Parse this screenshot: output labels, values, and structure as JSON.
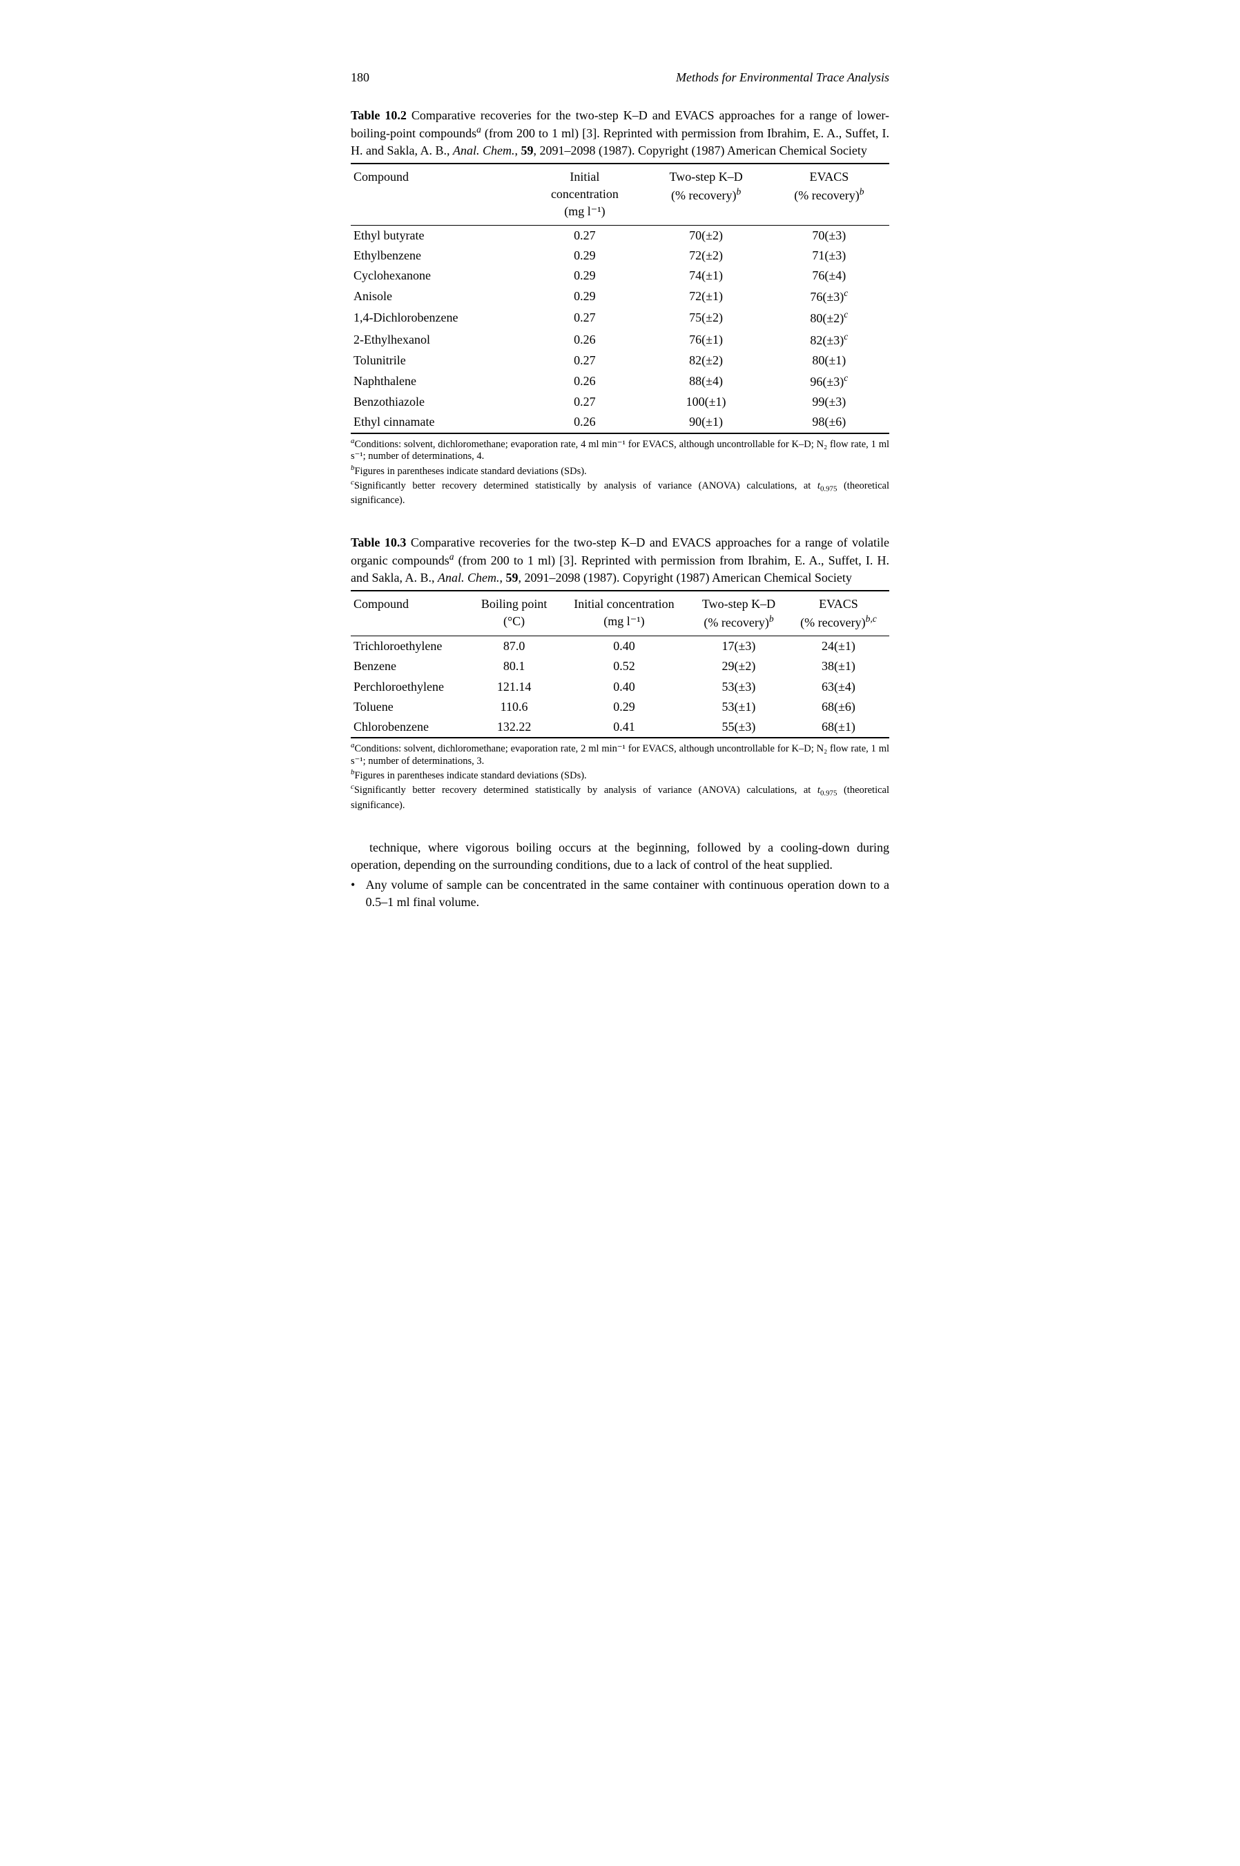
{
  "page_number": "180",
  "running_head": "Methods for Environmental Trace Analysis",
  "table_10_2": {
    "label": "Table 10.2",
    "caption_parts": {
      "text1": " Comparative recoveries for the two-step K–D and EVACS approaches for a range of lower-boiling-point compounds",
      "sup1": "a",
      "text2": " (from 200 to 1 ml) [3]. Reprinted with permission from Ibrahim, E. A., Suffet, I. H. and Sakla, A. B., ",
      "journal": "Anal. Chem.",
      "text3": ", ",
      "vol": "59",
      "text4": ", 2091–2098 (1987). Copyright (1987) American Chemical Society"
    },
    "columns": {
      "c1": "Compound",
      "c2_line1": "Initial",
      "c2_line2": "concentration",
      "c2_line3": "(mg l⁻¹)",
      "c3_line1": "Two-step K–D",
      "c3_line2_pre": "(% recovery)",
      "c3_sup": "b",
      "c4_line1": "EVACS",
      "c4_line2_pre": "(% recovery)",
      "c4_sup": "b"
    },
    "rows": [
      {
        "compound": "Ethyl butyrate",
        "conc": "0.27",
        "kd": "70(±2)",
        "evacs": "70(±3)",
        "evacs_sup": ""
      },
      {
        "compound": "Ethylbenzene",
        "conc": "0.29",
        "kd": "72(±2)",
        "evacs": "71(±3)",
        "evacs_sup": ""
      },
      {
        "compound": "Cyclohexanone",
        "conc": "0.29",
        "kd": "74(±1)",
        "evacs": "76(±4)",
        "evacs_sup": ""
      },
      {
        "compound": "Anisole",
        "conc": "0.29",
        "kd": "72(±1)",
        "evacs": "76(±3)",
        "evacs_sup": "c"
      },
      {
        "compound": "1,4-Dichlorobenzene",
        "conc": "0.27",
        "kd": "75(±2)",
        "evacs": "80(±2)",
        "evacs_sup": "c"
      },
      {
        "compound": "2-Ethylhexanol",
        "conc": "0.26",
        "kd": "76(±1)",
        "evacs": "82(±3)",
        "evacs_sup": "c"
      },
      {
        "compound": "Tolunitrile",
        "conc": "0.27",
        "kd": "82(±2)",
        "evacs": "80(±1)",
        "evacs_sup": ""
      },
      {
        "compound": "Naphthalene",
        "conc": "0.26",
        "kd": "88(±4)",
        "evacs": "96(±3)",
        "evacs_sup": "c"
      },
      {
        "compound": "Benzothiazole",
        "conc": "0.27",
        "kd": "100(±1)",
        "evacs": "99(±3)",
        "evacs_sup": ""
      },
      {
        "compound": "Ethyl cinnamate",
        "conc": "0.26",
        "kd": "90(±1)",
        "evacs": "98(±6)",
        "evacs_sup": ""
      }
    ],
    "footnotes": {
      "a_sup": "a",
      "a_text": "Conditions: solvent, dichloromethane; evaporation rate, 4 ml min⁻¹ for EVACS, although uncontrollable for K–D; N₂ flow rate, 1 ml s⁻¹; number of determinations, 4.",
      "b_sup": "b",
      "b_text": "Figures in parentheses indicate standard deviations (SDs).",
      "c_sup": "c",
      "c_text_pre": "Significantly better recovery determined statistically by analysis of variance (ANOVA) calculations, at ",
      "c_t": "t",
      "c_tsub": "0.975",
      "c_text_post": " (theoretical significance)."
    }
  },
  "table_10_3": {
    "label": "Table 10.3",
    "caption_parts": {
      "text1": " Comparative recoveries for the two-step K–D and EVACS approaches for a range of volatile organic compounds",
      "sup1": "a",
      "text2": " (from 200 to 1 ml) [3]. Reprinted with permission from Ibrahim, E. A., Suffet, I. H. and Sakla, A. B., ",
      "journal": "Anal. Chem.",
      "text3": ", ",
      "vol": "59",
      "text4": ", 2091–2098 (1987). Copyright (1987) American Chemical Society"
    },
    "columns": {
      "c1": "Compound",
      "c2_line1": "Boiling point",
      "c2_line2": "(°C)",
      "c3_line1": "Initial concentration",
      "c3_line2": "(mg l⁻¹)",
      "c4_line1": "Two-step K–D",
      "c4_line2_pre": "(% recovery)",
      "c4_sup": "b",
      "c5_line1": "EVACS",
      "c5_line2_pre": "(% recovery)",
      "c5_sup": "b,c"
    },
    "rows": [
      {
        "compound": "Trichloroethylene",
        "bp": "87.0",
        "conc": "0.40",
        "kd": "17(±3)",
        "evacs": "24(±1)"
      },
      {
        "compound": "Benzene",
        "bp": "80.1",
        "conc": "0.52",
        "kd": "29(±2)",
        "evacs": "38(±1)"
      },
      {
        "compound": "Perchloroethylene",
        "bp": "121.14",
        "conc": "0.40",
        "kd": "53(±3)",
        "evacs": "63(±4)"
      },
      {
        "compound": "Toluene",
        "bp": "110.6",
        "conc": "0.29",
        "kd": "53(±1)",
        "evacs": "68(±6)"
      },
      {
        "compound": "Chlorobenzene",
        "bp": "132.22",
        "conc": "0.41",
        "kd": "55(±3)",
        "evacs": "68(±1)"
      }
    ],
    "footnotes": {
      "a_sup": "a",
      "a_text": "Conditions: solvent, dichloromethane; evaporation rate, 2 ml min⁻¹ for EVACS, although uncontrollable for K–D; N₂ flow rate, 1 ml s⁻¹; number of determinations, 3.",
      "b_sup": "b",
      "b_text": "Figures in parentheses indicate standard deviations (SDs).",
      "c_sup": "c",
      "c_text_pre": "Significantly better recovery determined statistically by analysis of variance (ANOVA) calculations, at ",
      "c_t": "t",
      "c_tsub": "0.975",
      "c_text_post": " (theoretical significance)."
    }
  },
  "body_text": {
    "para1": "technique, where vigorous boiling occurs at the beginning, followed by a cooling-down during operation, depending on the surrounding conditions, due to a lack of control of the heat supplied.",
    "bullet": "Any volume of sample can be concentrated in the same container with continuous operation down to a 0.5–1 ml final volume."
  }
}
